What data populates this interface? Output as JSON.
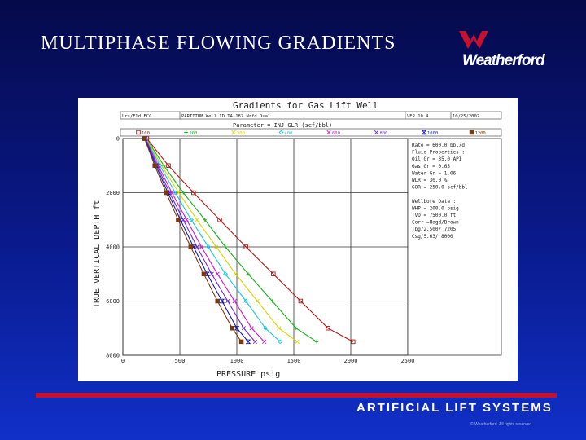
{
  "slide": {
    "title": "MULTIPHASE  FLOWING  GRADIENTS",
    "footer": "ARTIFICIAL LIFT SYSTEMS",
    "copyright": "© Weatherford. All rights reserved.",
    "logo": "Weatherford",
    "colors": {
      "footer_bar": "#c8102e",
      "logo_mark": "#c8102e"
    }
  },
  "chart_data": {
    "type": "line",
    "title": "Gradients for Gas Lift Well",
    "header_cells": [
      "Lrs/Fld ECC",
      "PARTITUM  Well ID  TA-187 Nrfd Dual",
      "VER 10.4",
      "10/25/2002"
    ],
    "parameter_label": "Parameter = INJ GLR (scf/bbl)",
    "xlabel": "PRESSURE psig",
    "ylabel": "TRUE VERTICAL DEPTH ft",
    "xlim": [
      0,
      2500
    ],
    "ylim": [
      0,
      8000
    ],
    "y_inverted": true,
    "x_ticks": [
      "0",
      "500",
      "1000",
      "1500",
      "2000",
      "2500"
    ],
    "y_ticks": [
      "0",
      "2000",
      "4000",
      "6000",
      "8000"
    ],
    "grid": true,
    "info_box": [
      "Rate  =   600.0 bbl/d",
      "Fluid Properties :",
      "Oil Gr =   35.0 API",
      "Gas Gr =    0.65",
      "Water Gr =  1.06",
      "WLR  =   30.0 %",
      "GOR  =  250.0 scf/bbl",
      "",
      "Wellbore Data :",
      "WHP  =  200.0 psig",
      "TVD  = 7500.0 ft",
      "Corr =Hagd/Brown",
      "Tbg/2.500/ 7205",
      "Csg/5.63/ 8000"
    ],
    "series": [
      {
        "name": "100",
        "color": "#b01818",
        "marker": "square",
        "x": [
          210,
          400,
          620,
          850,
          1080,
          1320,
          1560,
          1800,
          2020
        ],
        "y": [
          0,
          1000,
          2000,
          3000,
          4000,
          5000,
          6000,
          7000,
          7500
        ]
      },
      {
        "name": "200",
        "color": "#1ab01a",
        "marker": "plus",
        "x": [
          205,
          360,
          530,
          720,
          900,
          1100,
          1310,
          1520,
          1700
        ],
        "y": [
          0,
          1000,
          2000,
          3000,
          4000,
          5000,
          6000,
          7000,
          7500
        ]
      },
      {
        "name": "300",
        "color": "#d6d600",
        "marker": "cross",
        "x": [
          202,
          340,
          490,
          650,
          820,
          990,
          1180,
          1370,
          1530
        ],
        "y": [
          0,
          1000,
          2000,
          3000,
          4000,
          5000,
          6000,
          7000,
          7500
        ]
      },
      {
        "name": "400",
        "color": "#18c8d8",
        "marker": "diamond",
        "x": [
          200,
          325,
          460,
          600,
          750,
          900,
          1080,
          1250,
          1380
        ],
        "y": [
          0,
          1000,
          2000,
          3000,
          4000,
          5000,
          6000,
          7000,
          7500
        ]
      },
      {
        "name": "600",
        "color": "#d018d0",
        "marker": "cross",
        "x": [
          198,
          310,
          430,
          560,
          690,
          830,
          980,
          1130,
          1240
        ],
        "y": [
          0,
          1000,
          2000,
          3000,
          4000,
          5000,
          6000,
          7000,
          7500
        ]
      },
      {
        "name": "800",
        "color": "#6c2ae0",
        "marker": "cross",
        "x": [
          195,
          300,
          410,
          530,
          650,
          780,
          920,
          1060,
          1160
        ],
        "y": [
          0,
          1000,
          2000,
          3000,
          4000,
          5000,
          6000,
          7000,
          7500
        ]
      },
      {
        "name": "1000",
        "color": "#1818b0",
        "marker": "hourglass",
        "x": [
          193,
          290,
          395,
          505,
          620,
          740,
          870,
          1000,
          1100
        ],
        "y": [
          0,
          1000,
          2000,
          3000,
          4000,
          5000,
          6000,
          7000,
          7500
        ]
      },
      {
        "name": "1200",
        "color": "#7a3a10",
        "marker": "filled-square",
        "x": [
          190,
          280,
          380,
          485,
          595,
          710,
          830,
          960,
          1040
        ],
        "y": [
          0,
          1000,
          2000,
          3000,
          4000,
          5000,
          6000,
          7000,
          7500
        ]
      }
    ]
  }
}
